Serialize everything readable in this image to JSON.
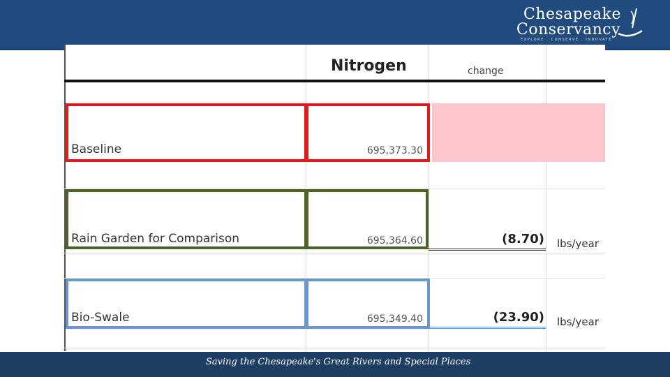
{
  "logo": {
    "line1": "Chesapeake",
    "line2": "Conservancy",
    "tagline": "EXPLORE . CONSERVE . INNOVATE"
  },
  "table": {
    "header_nitrogen": "Nitrogen",
    "header_change": "change",
    "rows": [
      {
        "label": "Baseline",
        "value": "695,373.30",
        "change": "",
        "unit": ""
      },
      {
        "label": "Rain Garden for Comparison",
        "value": "695,364.60",
        "change": "(8.70)",
        "unit": "lbs/year"
      },
      {
        "label": "Bio-Swale",
        "value": "695,349.40",
        "change": "(23.90)",
        "unit": "lbs/year"
      }
    ]
  },
  "footer": {
    "text": "Saving the Chesapeake's Great Rivers and Special Places"
  },
  "colors": {
    "banner": "#214b7e",
    "footer": "#1e3f63",
    "baseline_box": "#e11a1a",
    "rain_garden_box": "#4f6228",
    "bio_swale_box": "#6b97cf",
    "baseline_change_fill": "#fdc6cd"
  }
}
